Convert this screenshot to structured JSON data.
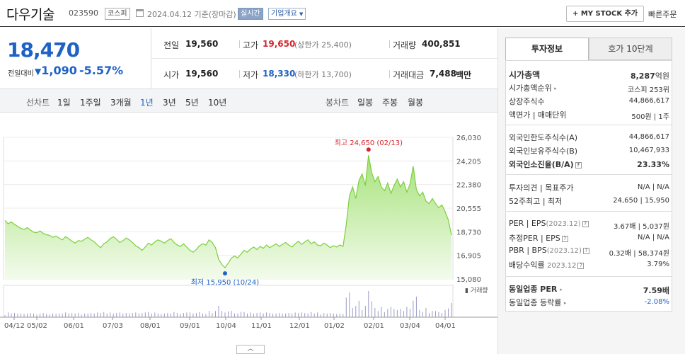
{
  "header": {
    "stock_name": "다우기술",
    "stock_code": "023590",
    "market_badge": "코스피",
    "date_text": "2024.04.12  기준(장마감)",
    "live_badge": "실시간",
    "overview_label": "기업개요",
    "mystock_label": "+ MY STOCK 추가",
    "quick_order_label": "빠른주문"
  },
  "quote": {
    "price": "18,470",
    "change_label": "전일대비",
    "change_value": "1,090",
    "change_pct": "-5.57%",
    "prev_close_label": "전일",
    "prev_close": "19,560",
    "open_label": "시가",
    "open": "19,560",
    "high_label": "고가",
    "high": "19,650",
    "upper_limit_text": "(상한가 25,400)",
    "low_label": "저가",
    "low": "18,330",
    "lower_limit_text": "(하한가 13,700)",
    "volume_label": "거래량",
    "volume": "400,851",
    "turnover_label": "거래대금",
    "turnover": "7,488",
    "turnover_unit": "백만"
  },
  "period_bar": {
    "line_label": "선차트",
    "line_periods": [
      "1일",
      "1주일",
      "3개월",
      "1년",
      "3년",
      "5년",
      "10년"
    ],
    "selected_period": "1년",
    "candle_label": "봉차트",
    "candle_periods": [
      "일봉",
      "주봉",
      "월봉"
    ]
  },
  "chart_data": {
    "type": "area",
    "title": "",
    "y_ticks": [
      "26,030",
      "24,205",
      "22,380",
      "20,555",
      "18,730",
      "16,905",
      "15,080"
    ],
    "ylim": [
      15080,
      26030
    ],
    "x_ticks": [
      "04/12",
      "05/02",
      "06/01",
      "07/03",
      "08/01",
      "09/01",
      "10/04",
      "11/01",
      "12/01",
      "01/02",
      "02/01",
      "03/04",
      "04/01"
    ],
    "max_annotation": "최고 24,650 (02/13)",
    "min_annotation": "최저 15,950 (10/24)",
    "volume_legend": "거래량",
    "series": [
      {
        "values": [
          19600,
          19350,
          19500,
          19300,
          19150,
          19000,
          18900,
          19050,
          18850,
          18700,
          18650,
          18800,
          18600,
          18500,
          18450,
          18300,
          18400,
          18250,
          18100,
          18350,
          18200,
          18000,
          17850,
          18050,
          18000,
          18150,
          18300,
          18100,
          17950,
          17700,
          17500,
          17800,
          17950,
          18200,
          18350,
          18150,
          17900,
          18050,
          18250,
          18100,
          17900,
          17650,
          17500,
          17300,
          17550,
          17850,
          17700,
          17950,
          18100,
          18000,
          17850,
          18050,
          18200,
          17900,
          17700,
          17600,
          17800,
          17550,
          17300,
          17150,
          17350,
          17650,
          17800,
          17700,
          18100,
          17900,
          17500,
          16600,
          16200,
          15950,
          16300,
          16700,
          16850,
          16700,
          17000,
          17300,
          17150,
          17400,
          17550,
          17350,
          17600,
          17450,
          17700,
          17500,
          17650,
          17800,
          17600,
          17750,
          17900,
          17700,
          17550,
          17800,
          18000,
          17750,
          17950,
          18100,
          17800,
          17950,
          17700,
          17650,
          17850,
          17700,
          17500,
          17650,
          17550,
          17700,
          17600,
          19300,
          21500,
          22200,
          21300,
          22700,
          23200,
          22300,
          24650,
          23300,
          22600,
          23000,
          22200,
          21900,
          22500,
          21700,
          22300,
          22800,
          22200,
          22600,
          21800,
          22400,
          23800,
          22000,
          21500,
          21800,
          21100,
          20900,
          21300,
          20900,
          20600,
          20800,
          20300,
          19650,
          18470
        ]
      }
    ]
  },
  "info_panel": {
    "tab_active": "투자정보",
    "tab_inactive": "호가 10단계",
    "rows": {
      "market_cap_label": "시가총액",
      "market_cap": "8,287",
      "market_cap_unit": "억원",
      "rank_label": "시가총액순위",
      "rank": "코스피 253위",
      "shares_label": "상장주식수",
      "shares": "44,866,617",
      "par_label": "액면가 | 매매단위",
      "par": "500원 | 1주",
      "foreign_limit_label": "외국인한도주식수(A)",
      "foreign_limit": "44,866,617",
      "foreign_hold_label": "외국인보유주식수(B)",
      "foreign_hold": "10,467,933",
      "foreign_ratio_label": "외국인소진율(B/A)",
      "foreign_ratio": "23.33%",
      "opinion_label": "투자의견  |  목표주가",
      "opinion": "N/A | N/A",
      "w52_label": "52주최고  |  최저",
      "w52": "24,650 | 15,950",
      "per_label": "PER  |  EPS",
      "per_tag": "(2023.12)",
      "per": "3.67배 | 5,037원",
      "est_per_label": "추정PER  |  EPS",
      "est_per": "N/A | N/A",
      "pbr_label": "PBR  |  BPS",
      "pbr_tag": "(2023.12)",
      "pbr": "0.32배 | 58,374원",
      "div_label": "배당수익률",
      "div_tag": "2023.12",
      "div": "3.79%",
      "ind_per_label": "동일업종 PER",
      "ind_per": "7.59배",
      "ind_chg_label": "동일업종 등락률",
      "ind_chg": "-2.08%"
    }
  },
  "colors": {
    "up": "#d8232a",
    "down": "#1f62c6",
    "area_fill": "#cbeeb0",
    "line": "#7ccf3c"
  }
}
